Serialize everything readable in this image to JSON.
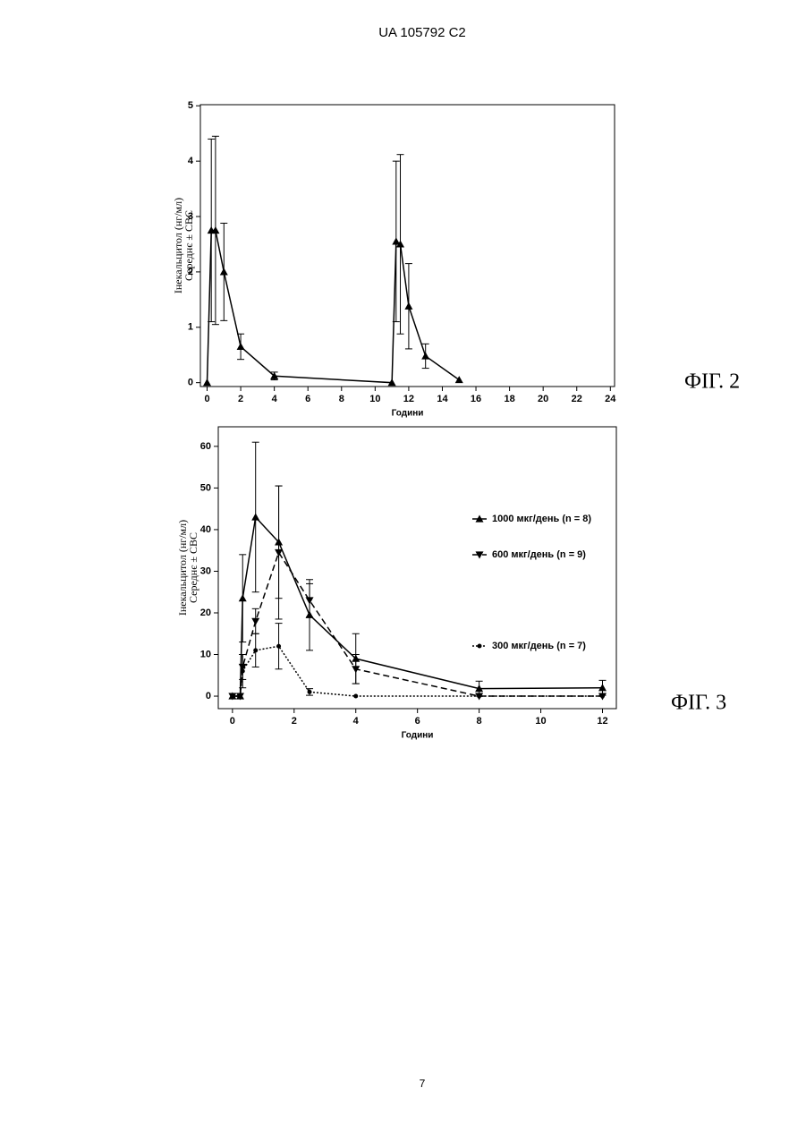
{
  "header": "UA   105792   C2",
  "page_number": "7",
  "chart_data": [
    {
      "type": "line",
      "figure_label": "ФІГ. 2",
      "x_label": "Години",
      "y_label": [
        "Інекальцитол (нг/мл)",
        "Середнє ± СВС"
      ],
      "x": [
        0,
        0.25,
        0.5,
        1,
        2,
        4,
        11,
        11.25,
        11.5,
        12,
        13,
        15
      ],
      "series": [
        {
          "color": "#000000",
          "marker": "up",
          "dash": "none",
          "values": [
            0,
            2.75,
            2.75,
            2.0,
            0.65,
            0.12,
            0,
            2.55,
            2.5,
            1.38,
            0.48,
            0.05
          ],
          "errors": [
            null,
            1.65,
            1.7,
            0.88,
            0.23,
            0.07,
            null,
            1.45,
            1.62,
            0.77,
            0.22,
            null
          ]
        }
      ],
      "xlim": [
        -0.4,
        24.25
      ],
      "ylim": [
        -0.07,
        5.02
      ],
      "xticks": [
        0,
        2,
        4,
        6,
        8,
        10,
        12,
        14,
        16,
        18,
        20,
        22,
        24
      ],
      "yticks": [
        0,
        1,
        2,
        3,
        4,
        5
      ]
    },
    {
      "type": "line",
      "figure_label": "ФІГ. 3",
      "x_label": "Години",
      "y_label": [
        "Інекальцитол (нг/мл)",
        "Середнє ± СВС"
      ],
      "x": [
        0,
        0.25,
        0.33,
        0.75,
        1.5,
        2.5,
        4,
        8,
        12
      ],
      "series": [
        {
          "name": "1000 мкг/день (n = 8)",
          "color": "#000000",
          "marker": "up",
          "dash": "none",
          "values": [
            0,
            0,
            23.5,
            43,
            37,
            19.5,
            9,
            1.8,
            2
          ],
          "errors": [
            null,
            null,
            10.5,
            18,
            13.5,
            8.5,
            6,
            1.8,
            1.8
          ]
        },
        {
          "name": "600 мкг/день (n = 9)",
          "color": "#000000",
          "marker": "down",
          "dash": "7 4",
          "values": [
            0,
            0,
            7,
            18,
            34.5,
            23,
            6.5,
            0,
            0
          ],
          "errors": [
            null,
            null,
            3,
            3,
            16,
            4,
            3.5,
            null,
            null
          ]
        },
        {
          "name": "300 мкг/день (n = 7)",
          "color": "#000000",
          "marker": "circle",
          "dash": "2 2",
          "values": [
            0,
            0,
            6,
            11,
            12,
            1,
            0,
            0,
            0
          ],
          "errors": [
            null,
            null,
            4,
            4,
            5.5,
            0.8,
            null,
            null,
            null
          ]
        }
      ],
      "xlim": [
        -0.46,
        12.45
      ],
      "ylim": [
        -3,
        64.7
      ],
      "xticks": [
        0,
        2,
        4,
        6,
        8,
        10,
        12
      ],
      "yticks": [
        0,
        10,
        20,
        30,
        40,
        50,
        60
      ],
      "legend": "right"
    }
  ]
}
